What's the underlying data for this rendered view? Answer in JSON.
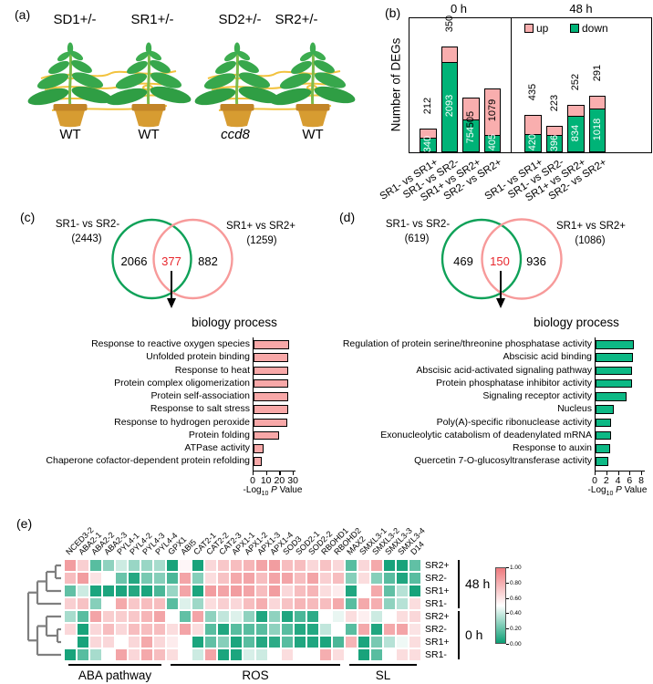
{
  "panels": {
    "a": "(a)",
    "b": "(b)",
    "c": "(c)",
    "d": "(d)",
    "e": "(e)"
  },
  "panel_a": {
    "plants": [
      {
        "graft": "SD1+/-",
        "host": "WT",
        "host_italic": false
      },
      {
        "graft": "SR1+/-",
        "host": "WT",
        "host_italic": false
      },
      {
        "graft": "SD2+/-",
        "host": "ccd8",
        "host_italic": true
      },
      {
        "graft": "SR2+/-",
        "host": "WT",
        "host_italic": false
      }
    ]
  },
  "chart_data": {
    "degs": {
      "type": "bar",
      "stacked": true,
      "ylabel": "Number of DEGs",
      "legend": [
        {
          "label": "up",
          "color": "#f9aeae"
        },
        {
          "label": "down",
          "color": "#00b377"
        }
      ],
      "groups": [
        {
          "title": "0 h",
          "categories": [
            "SR1- vs SR1+",
            "SR1- vs SR2-",
            "SR1+ vs SR2+",
            "SR2- vs SR2+"
          ],
          "up": [
            212,
            350,
            505,
            1079
          ],
          "down": [
            340,
            2093,
            754,
            405
          ]
        },
        {
          "title": "48 h",
          "categories": [
            "SR1- vs SR1+",
            "SR1- vs SR2-",
            "SR1+ vs SR2+",
            "SR2- vs SR2+"
          ],
          "up": [
            435,
            223,
            252,
            291
          ],
          "down": [
            420,
            396,
            834,
            1018
          ]
        }
      ],
      "ymax": 2600
    },
    "venn_c": {
      "left_label": "SR1- vs SR2-",
      "left_count": "(2443)",
      "right_label": "SR1+ vs SR2+",
      "right_count": "(1259)",
      "left_only": "2066",
      "overlap": "377",
      "right_only": "882",
      "left_color": "#0fa158",
      "right_color": "#f79a9a",
      "overlap_color": "#e8262c"
    },
    "go_c": {
      "type": "bar-horizontal",
      "title": "biology process",
      "bar_color": "#f8a8a8",
      "xticks": [
        "0",
        "10",
        "20",
        "30"
      ],
      "xtick_values": [
        0,
        10,
        20,
        30
      ],
      "xmax": 31.5,
      "xlabel": {
        "prefix": "-Log",
        "sub": "10",
        "italic": " P",
        "suffix": " Value"
      },
      "categories": [
        "Response to reactive oxygen species",
        "Unfolded protein binding",
        "Response to heat",
        "Protein complex oligomerization",
        "Protein self-association",
        "Response to salt stress",
        "Response to hydrogen peroxide",
        "Protein folding",
        "ATPase activity",
        "Chaperone cofactor-dependent protein refolding"
      ],
      "values": [
        27,
        26.5,
        26,
        26,
        26,
        26,
        25.5,
        19.5,
        7.5,
        6.2
      ]
    },
    "venn_d": {
      "left_label": "SR1- vs SR2-",
      "left_count": "(619)",
      "right_label": "SR1+ vs SR2+",
      "right_count": "(1086)",
      "left_only": "469",
      "overlap": "150",
      "right_only": "936",
      "left_color": "#0fa158",
      "right_color": "#f79a9a",
      "overlap_color": "#e8262c"
    },
    "go_d": {
      "type": "bar-horizontal",
      "title": "biology process",
      "bar_color": "#0db985",
      "xticks": [
        "0",
        "2",
        "4",
        "6",
        "8"
      ],
      "xtick_values": [
        0,
        2,
        4,
        6,
        8
      ],
      "xmax": 8.6,
      "xlabel": {
        "prefix": "-Log",
        "sub": "10",
        "italic": " P",
        "suffix": " Value"
      },
      "categories": [
        "Regulation of protein serine/threonine phosphatase activity",
        "Abscisic acid binding",
        "Abscisic acid-activated signaling pathway",
        "Protein phosphatase inhibitor activity",
        "Signaling receptor activity",
        "Nucleus",
        "Poly(A)-specific ribonuclease activity",
        "Exonucleolytic catabolism of deadenylated mRNA",
        "Response to auxin",
        "Quercetin 7-O-glucosyltransferase activity"
      ],
      "values": [
        6.6,
        6.5,
        6.4,
        6.3,
        5.4,
        3.2,
        2.7,
        2.7,
        2.6,
        2.2
      ]
    },
    "heatmap": {
      "type": "heatmap",
      "columns": [
        "NCED3-2",
        "ABA2-1",
        "ABA2-2",
        "ABA2-3",
        "PYL4-1",
        "PYL4-2",
        "PYL4-3",
        "PYL4-4",
        "GPX1",
        "ABI5",
        "CAT2-1",
        "CAT2-2",
        "CAT2-3",
        "APX1-1",
        "APX1-2",
        "APX1-3",
        "APX1-4",
        "SOD3",
        "SOD2-1",
        "SOD2-2",
        "RBOHD1",
        "RBOHD2",
        "MAX2",
        "SMXL3-1",
        "SMXL3-2",
        "SMXL3-3",
        "SMXL3-4",
        "D14"
      ],
      "rows": [
        "SR2+",
        "SR2-",
        "SR1+",
        "SR1-",
        "SR2+",
        "SR2-",
        "SR1+",
        "SR1-"
      ],
      "row_groups": [
        {
          "label": "48 h",
          "from": 0,
          "to": 3
        },
        {
          "label": "0 h",
          "from": 4,
          "to": 7
        }
      ],
      "col_groups": [
        {
          "label": "ABA pathway",
          "from": 0,
          "to": 7
        },
        {
          "label": "ROS",
          "from": 8,
          "to": 21
        },
        {
          "label": "SL",
          "from": 22,
          "to": 27
        }
      ],
      "values": [
        [
          0.85,
          0.65,
          0.18,
          0.3,
          0.42,
          0.32,
          0.32,
          0.35,
          0.03,
          0.52,
          0.03,
          0.62,
          0.68,
          0.72,
          0.75,
          0.82,
          0.85,
          0.72,
          0.72,
          0.62,
          0.7,
          0.62,
          0.18,
          0.62,
          0.8,
          0.03,
          0.03,
          0.2
        ],
        [
          0.72,
          0.85,
          0.58,
          0.5,
          0.22,
          0.06,
          0.25,
          0.28,
          0.15,
          0.82,
          0.28,
          0.6,
          0.7,
          0.8,
          0.82,
          0.72,
          0.82,
          0.82,
          0.72,
          0.82,
          0.65,
          0.72,
          0.28,
          0.6,
          0.28,
          0.18,
          0.05,
          0.18
        ],
        [
          0.2,
          0.42,
          0.04,
          0.04,
          0.04,
          0.06,
          0.04,
          0.15,
          0.32,
          0.82,
          0.04,
          0.85,
          0.82,
          0.85,
          0.82,
          0.72,
          0.85,
          0.62,
          0.72,
          0.75,
          0.6,
          0.55,
          0.05,
          0.5,
          0.8,
          0.2,
          0.38,
          0.03
        ],
        [
          0.65,
          0.7,
          0.28,
          0.5,
          0.8,
          0.68,
          0.72,
          0.72,
          0.18,
          0.45,
          0.33,
          0.6,
          0.65,
          0.62,
          0.72,
          0.78,
          0.62,
          0.7,
          0.75,
          0.73,
          0.72,
          0.8,
          0.18,
          0.8,
          0.78,
          0.3,
          0.38,
          0.6
        ],
        [
          0.35,
          0.18,
          0.82,
          0.66,
          0.66,
          0.68,
          0.75,
          0.82,
          0.5,
          0.2,
          0.82,
          0.3,
          0.4,
          0.45,
          0.3,
          0.05,
          0.3,
          0.05,
          0.15,
          0.08,
          0.5,
          0.47,
          0.6,
          0.54,
          0.42,
          0.5,
          0.6,
          0.62
        ],
        [
          0.62,
          0.03,
          0.62,
          0.72,
          0.62,
          0.72,
          0.72,
          0.72,
          0.6,
          0.82,
          0.6,
          0.18,
          0.05,
          0.18,
          0.18,
          0.18,
          0.3,
          0.18,
          0.06,
          0.06,
          0.4,
          0.5,
          0.18,
          0.8,
          0.05,
          0.8,
          0.82,
          0.58
        ],
        [
          0.5,
          0.03,
          0.62,
          0.62,
          0.5,
          0.62,
          0.8,
          0.62,
          0.55,
          0.5,
          0.04,
          0.2,
          0.28,
          0.04,
          0.18,
          0.06,
          0.08,
          0.18,
          0.05,
          0.05,
          0.04,
          0.15,
          0.75,
          0.04,
          0.25,
          0.38,
          0.48,
          0.6
        ],
        [
          0.03,
          0.18,
          0.35,
          0.5,
          0.82,
          0.62,
          0.8,
          0.72,
          0.6,
          0.5,
          0.42,
          0.82,
          0.04,
          0.04,
          0.44,
          0.42,
          0.5,
          0.6,
          0.5,
          0.5,
          0.78,
          0.6,
          0.5,
          0.03,
          0.18,
          0.5,
          0.6,
          0.6
        ]
      ],
      "colorbar_ticks": [
        "1.00",
        "0.80",
        "0.60",
        "0.40",
        "0.20",
        "0.00"
      ],
      "color_high": "#ee7a7e",
      "color_mid": "#ffffff",
      "color_low": "#0b9e74"
    }
  }
}
